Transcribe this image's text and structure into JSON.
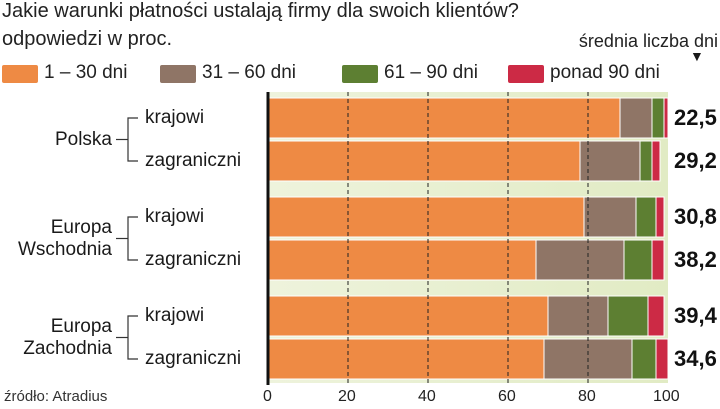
{
  "chart_data": {
    "type": "bar",
    "orientation": "horizontal",
    "stacked": true,
    "title": "Jakie warunki płatności ustalają firmy dla swoich klientów?",
    "subtitle": "odpowiedzi w proc.",
    "average_header": "średnia liczba dni",
    "source": "źródło: Atradius",
    "xlim": [
      0,
      100
    ],
    "ticks": [
      "0",
      "20",
      "40",
      "60",
      "80",
      "100"
    ],
    "tick_values": [
      0,
      20,
      40,
      60,
      80,
      100
    ],
    "grid": "vertical dashed",
    "legend_position": "top",
    "series": [
      {
        "name": "1 – 30 dni",
        "color": "#ee8a44"
      },
      {
        "name": "31 – 60 dni",
        "color": "#8f7566"
      },
      {
        "name": "61 – 90 dni",
        "color": "#5d7f32"
      },
      {
        "name": "ponad 90 dni",
        "color": "#cc2a45"
      }
    ],
    "groups": [
      {
        "name": "Polska",
        "rows": [
          {
            "label": "krajowi",
            "values": [
              88,
              8,
              3,
              1
            ],
            "average": "22,5"
          },
          {
            "label": "zagraniczni",
            "values": [
              78,
              15,
              3,
              2
            ],
            "average": "29,2"
          }
        ]
      },
      {
        "name": "Europa Wschodnia",
        "rows": [
          {
            "label": "krajowi",
            "values": [
              79,
              13,
              5,
              2
            ],
            "average": "30,8"
          },
          {
            "label": "zagraniczni",
            "values": [
              67,
              22,
              7,
              3
            ],
            "average": "38,2"
          }
        ]
      },
      {
        "name": "Europa Zachodnia",
        "rows": [
          {
            "label": "krajowi",
            "values": [
              70,
              15,
              10,
              4
            ],
            "average": "39,4"
          },
          {
            "label": "zagraniczni",
            "values": [
              69,
              22,
              6,
              3
            ],
            "average": "34,6"
          }
        ]
      }
    ]
  }
}
